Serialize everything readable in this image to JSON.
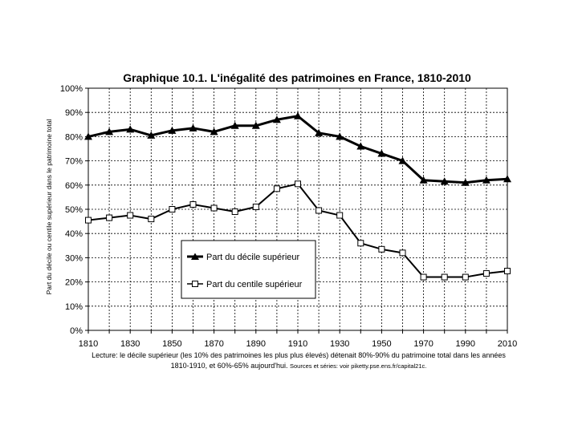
{
  "chart_data": {
    "type": "line",
    "title": "Graphique 10.1. L'inégalité des patrimoines en France, 1810-2010",
    "xlabel": "",
    "ylabel": "Part du décile ou centile supérieur dans le patrimoine total",
    "x": [
      1810,
      1820,
      1830,
      1840,
      1850,
      1860,
      1870,
      1880,
      1890,
      1900,
      1910,
      1920,
      1930,
      1940,
      1950,
      1960,
      1970,
      1980,
      1990,
      2000,
      2010
    ],
    "x_ticks": [
      "1810",
      "1830",
      "1850",
      "1870",
      "1890",
      "1910",
      "1930",
      "1950",
      "1970",
      "1990",
      "2010"
    ],
    "x_tick_values": [
      1810,
      1830,
      1850,
      1870,
      1890,
      1910,
      1930,
      1950,
      1970,
      1990,
      2010
    ],
    "xlim": [
      1810,
      2010
    ],
    "y_ticks": [
      "0%",
      "10%",
      "20%",
      "30%",
      "40%",
      "50%",
      "60%",
      "70%",
      "80%",
      "90%",
      "100%"
    ],
    "ylim": [
      0,
      1
    ],
    "grid": true,
    "legend_position": "center-left",
    "series": [
      {
        "name": "Part du décile supérieur",
        "marker": "triangle-filled",
        "values": [
          0.8,
          0.82,
          0.83,
          0.805,
          0.825,
          0.835,
          0.82,
          0.845,
          0.845,
          0.87,
          0.885,
          0.815,
          0.8,
          0.76,
          0.73,
          0.7,
          0.62,
          0.615,
          0.61,
          0.62,
          0.625
        ]
      },
      {
        "name": "Part du centile supérieur",
        "marker": "square-open",
        "values": [
          0.455,
          0.465,
          0.475,
          0.46,
          0.5,
          0.52,
          0.505,
          0.49,
          0.51,
          0.585,
          0.605,
          0.495,
          0.475,
          0.36,
          0.335,
          0.32,
          0.22,
          0.22,
          0.22,
          0.235,
          0.245
        ]
      }
    ]
  },
  "caption": {
    "text": "Lecture: le décile supérieur (les 10% des patrimoines les plus plus élevés) détenait 80%-90% du patrimoine total dans les années 1810-1910, et 60%-65% aujourd'hui.",
    "sources": "Sources et séries: voir piketty.pse.ens.fr/capital21c."
  }
}
